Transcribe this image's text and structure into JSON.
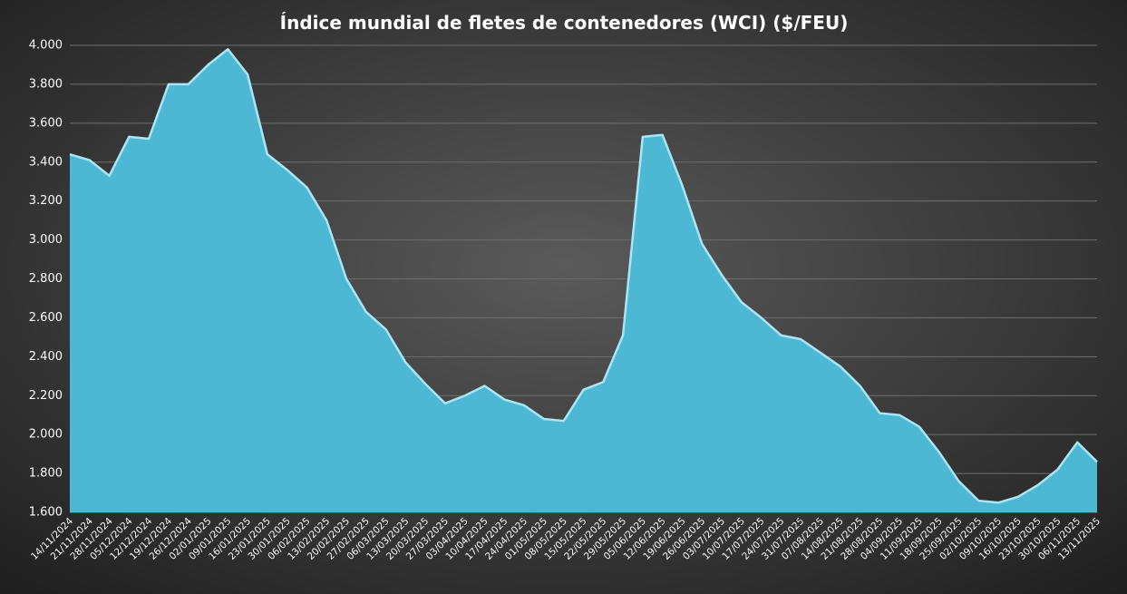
{
  "chart_data": {
    "type": "area",
    "title": "Índice mundial de fletes de contenedores (WCI) ($/FEU)",
    "color": "#4db8d4",
    "grid": true,
    "categories": [
      "14/11/2024",
      "21/11/2024",
      "28/11/2024",
      "05/12/2024",
      "12/12/2024",
      "19/12/2024",
      "26/12/2024",
      "02/01/2025",
      "09/01/2025",
      "16/01/2025",
      "23/01/2025",
      "30/01/2025",
      "06/02/2025",
      "13/02/2025",
      "20/02/2025",
      "27/02/2025",
      "06/03/2025",
      "13/03/2025",
      "20/03/2025",
      "27/03/2025",
      "03/04/2025",
      "10/04/2025",
      "17/04/2025",
      "24/04/2025",
      "01/05/2025",
      "08/05/2025",
      "15/05/2025",
      "22/05/2025",
      "29/05/2025",
      "05/06/2025",
      "12/06/2025",
      "19/06/2025",
      "26/06/2025",
      "03/07/2025",
      "10/07/2025",
      "17/07/2025",
      "24/07/2025",
      "31/07/2025",
      "07/08/2025",
      "14/08/2025",
      "21/08/2025",
      "28/08/2025",
      "04/09/2025",
      "11/09/2025",
      "18/09/2025",
      "25/09/2025",
      "02/10/2025",
      "09/10/2025",
      "16/10/2025",
      "23/10/2025",
      "30/10/2025",
      "06/11/2025",
      "13/11/2025"
    ],
    "values": [
      3440,
      3410,
      3330,
      3530,
      3520,
      3800,
      3800,
      3900,
      3980,
      3850,
      3440,
      3360,
      3270,
      3100,
      2800,
      2630,
      2540,
      2370,
      2260,
      2160,
      2200,
      2250,
      2180,
      2150,
      2080,
      2070,
      2230,
      2270,
      2510,
      3530,
      3540,
      3280,
      2980,
      2820,
      2680,
      2600,
      2510,
      2490,
      2420,
      2350,
      2250,
      2110,
      2100,
      2040,
      1910,
      1760,
      1660,
      1650,
      1680,
      1740,
      1820,
      1960,
      1860
    ],
    "ylim": [
      1600,
      4000
    ],
    "yticks": [
      {
        "value": 1600,
        "label": "1.600"
      },
      {
        "value": 1800,
        "label": "1.800"
      },
      {
        "value": 2000,
        "label": "2.000"
      },
      {
        "value": 2200,
        "label": "2.200"
      },
      {
        "value": 2400,
        "label": "2.400"
      },
      {
        "value": 2600,
        "label": "2.600"
      },
      {
        "value": 2800,
        "label": "2.800"
      },
      {
        "value": 3000,
        "label": "3.000"
      },
      {
        "value": 3200,
        "label": "3.200"
      },
      {
        "value": 3400,
        "label": "3.400"
      },
      {
        "value": 3600,
        "label": "3.600"
      },
      {
        "value": 3800,
        "label": "3.800"
      },
      {
        "value": 4000,
        "label": "4.000"
      }
    ]
  }
}
